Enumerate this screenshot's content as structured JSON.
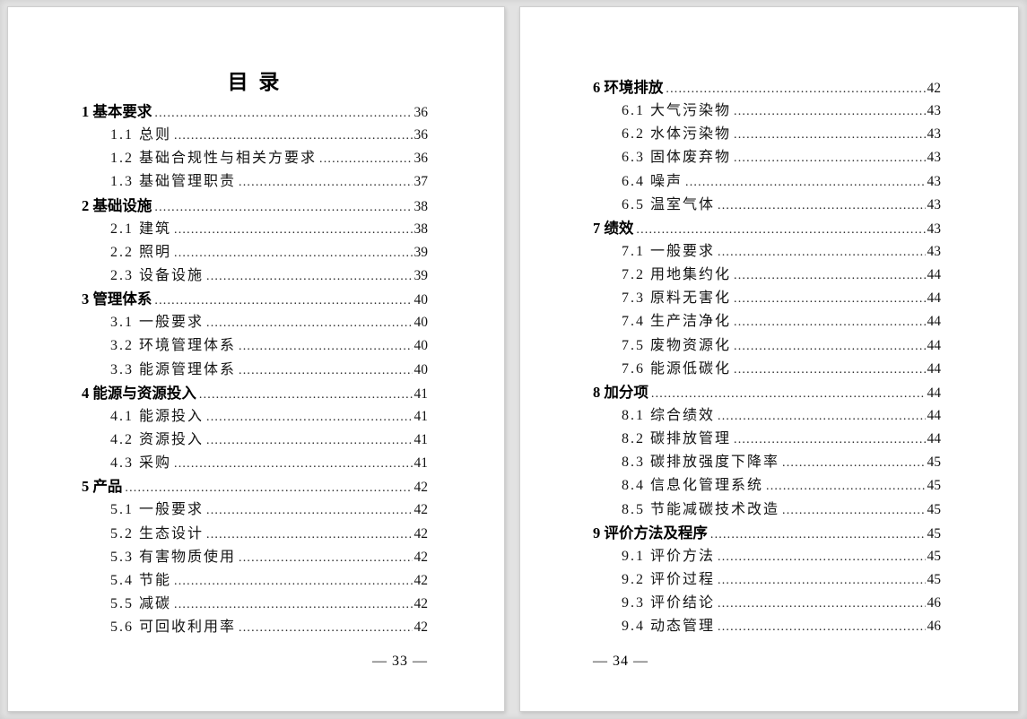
{
  "viewer": {
    "background_color": "#e2e2e2",
    "page_color": "#ffffff",
    "text_color": "#141414"
  },
  "pages": {
    "left": {
      "title": "目 录",
      "footer": "— 33 —",
      "entries": [
        {
          "level": 1,
          "label": "1 基本要求",
          "page": "36"
        },
        {
          "level": 2,
          "label": "1.1 总则",
          "page": "36"
        },
        {
          "level": 2,
          "label": "1.2 基础合规性与相关方要求",
          "page": "36"
        },
        {
          "level": 2,
          "label": "1.3 基础管理职责",
          "page": "37"
        },
        {
          "level": 1,
          "label": "2 基础设施",
          "page": "38"
        },
        {
          "level": 2,
          "label": "2.1 建筑",
          "page": "38"
        },
        {
          "level": 2,
          "label": "2.2 照明",
          "page": "39"
        },
        {
          "level": 2,
          "label": "2.3 设备设施",
          "page": "39"
        },
        {
          "level": 1,
          "label": "3 管理体系",
          "page": "40"
        },
        {
          "level": 2,
          "label": "3.1 一般要求",
          "page": "40"
        },
        {
          "level": 2,
          "label": "3.2 环境管理体系",
          "page": "40"
        },
        {
          "level": 2,
          "label": "3.3 能源管理体系",
          "page": "40"
        },
        {
          "level": 1,
          "label": "4 能源与资源投入",
          "page": "41"
        },
        {
          "level": 2,
          "label": "4.1 能源投入",
          "page": "41"
        },
        {
          "level": 2,
          "label": "4.2 资源投入",
          "page": "41"
        },
        {
          "level": 2,
          "label": "4.3 采购",
          "page": "41"
        },
        {
          "level": 1,
          "label": "5 产品",
          "page": "42"
        },
        {
          "level": 2,
          "label": "5.1 一般要求",
          "page": "42"
        },
        {
          "level": 2,
          "label": "5.2 生态设计",
          "page": "42"
        },
        {
          "level": 2,
          "label": "5.3 有害物质使用",
          "page": "42"
        },
        {
          "level": 2,
          "label": "5.4 节能",
          "page": "42"
        },
        {
          "level": 2,
          "label": "5.5 减碳",
          "page": "42"
        },
        {
          "level": 2,
          "label": "5.6 可回收利用率",
          "page": "42"
        }
      ]
    },
    "right": {
      "footer": "— 34 —",
      "entries": [
        {
          "level": 1,
          "label": "6 环境排放",
          "page": "42"
        },
        {
          "level": 2,
          "label": "6.1 大气污染物",
          "page": "43"
        },
        {
          "level": 2,
          "label": "6.2 水体污染物",
          "page": "43"
        },
        {
          "level": 2,
          "label": "6.3 固体废弃物",
          "page": "43"
        },
        {
          "level": 2,
          "label": "6.4 噪声",
          "page": "43"
        },
        {
          "level": 2,
          "label": "6.5 温室气体",
          "page": "43"
        },
        {
          "level": 1,
          "label": "7 绩效",
          "page": "43"
        },
        {
          "level": 2,
          "label": "7.1 一般要求",
          "page": "43"
        },
        {
          "level": 2,
          "label": "7.2 用地集约化",
          "page": "44"
        },
        {
          "level": 2,
          "label": "7.3 原料无害化",
          "page": "44"
        },
        {
          "level": 2,
          "label": "7.4 生产洁净化",
          "page": "44"
        },
        {
          "level": 2,
          "label": "7.5 废物资源化",
          "page": "44"
        },
        {
          "level": 2,
          "label": "7.6 能源低碳化",
          "page": "44"
        },
        {
          "level": 1,
          "label": "8 加分项",
          "page": "44"
        },
        {
          "level": 2,
          "label": "8.1 综合绩效",
          "page": "44"
        },
        {
          "level": 2,
          "label": "8.2 碳排放管理",
          "page": "44"
        },
        {
          "level": 2,
          "label": "8.3 碳排放强度下降率",
          "page": "45"
        },
        {
          "level": 2,
          "label": "8.4 信息化管理系统",
          "page": "45"
        },
        {
          "level": 2,
          "label": "8.5 节能减碳技术改造",
          "page": "45"
        },
        {
          "level": 1,
          "label": "9 评价方法及程序",
          "page": "45"
        },
        {
          "level": 2,
          "label": "9.1 评价方法",
          "page": "45"
        },
        {
          "level": 2,
          "label": "9.2 评价过程",
          "page": "45"
        },
        {
          "level": 2,
          "label": "9.3 评价结论",
          "page": "46"
        },
        {
          "level": 2,
          "label": "9.4 动态管理",
          "page": "46"
        }
      ]
    }
  }
}
